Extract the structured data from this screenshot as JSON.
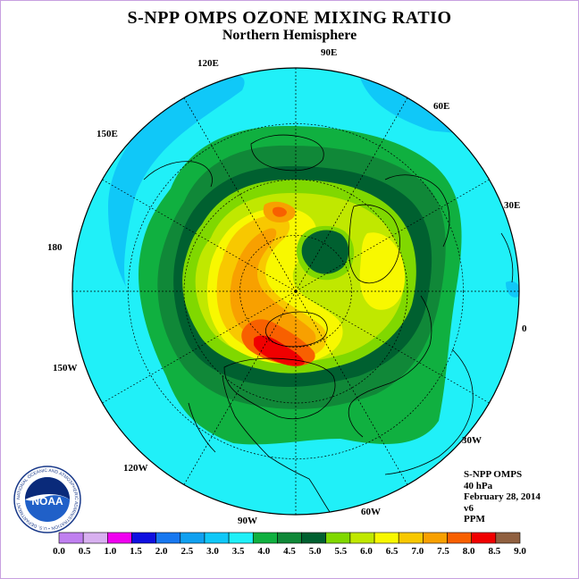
{
  "header": {
    "title": "S-NPP OMPS OZONE MIXING RATIO",
    "subtitle": "Northern Hemisphere"
  },
  "map": {
    "longitude_labels": [
      {
        "text": "90E"
      },
      {
        "text": "60E"
      },
      {
        "text": "30E"
      },
      {
        "text": "0"
      },
      {
        "text": "30W"
      },
      {
        "text": "60W"
      },
      {
        "text": "90W"
      },
      {
        "text": "120W"
      },
      {
        "text": "150W"
      },
      {
        "text": "180"
      },
      {
        "text": "150E"
      },
      {
        "text": "120E"
      }
    ]
  },
  "info": {
    "lines": [
      "S-NPP OMPS",
      "40 hPa",
      "February 28, 2014",
      "v6",
      "PPM"
    ]
  },
  "logo": {
    "text": "NOAA",
    "ring_text": "NATIONAL OCEANIC AND ATMOSPHERIC ADMINISTRATION • U.S. DEPARTMENT OF COMMERCE",
    "icon": "noaa-logo-icon"
  },
  "colorbar": {
    "labels": [
      "0.0",
      "0.5",
      "1.0",
      "1.5",
      "2.0",
      "2.5",
      "3.0",
      "3.5",
      "4.0",
      "4.5",
      "5.0",
      "5.5",
      "6.0",
      "6.5",
      "7.0",
      "7.5",
      "8.0",
      "8.5",
      "9.0"
    ],
    "colors": [
      "#c080f0",
      "#d8b0f0",
      "#f000f0",
      "#1010e0",
      "#1878f0",
      "#10a0f0",
      "#10c8f8",
      "#20f0f8",
      "#10b040",
      "#108838",
      "#006030",
      "#80d800",
      "#c0e800",
      "#f8f800",
      "#f8c800",
      "#f8a000",
      "#f86000",
      "#f00000",
      "#906040"
    ]
  }
}
